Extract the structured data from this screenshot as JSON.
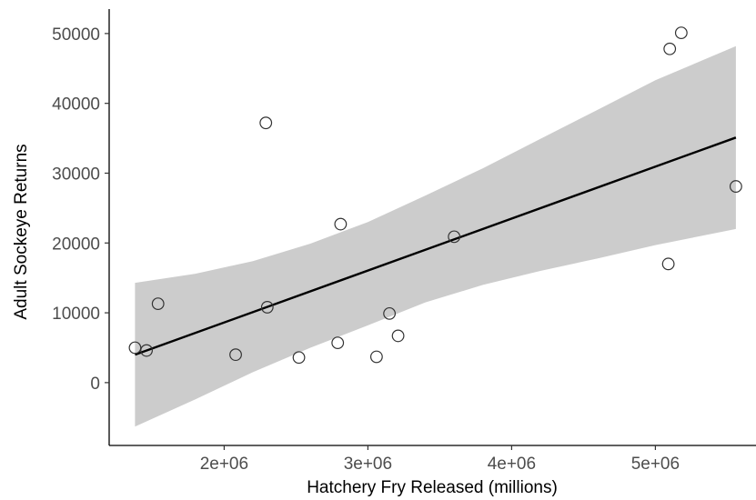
{
  "chart_data": {
    "type": "scatter",
    "title": "",
    "xlabel": "Hatchery Fry Released (millions)",
    "ylabel": "Adult Sockeye Returns",
    "xlim": [
      1200000,
      5700000
    ],
    "ylim": [
      -9000,
      53500
    ],
    "x_ticks": [
      2000000,
      3000000,
      4000000,
      5000000
    ],
    "x_tick_labels": [
      "2e+06",
      "3e+06",
      "4e+06",
      "5e+06"
    ],
    "y_ticks": [
      0,
      10000,
      20000,
      30000,
      40000,
      50000
    ],
    "y_tick_labels": [
      "0",
      "10000",
      "20000",
      "30000",
      "40000",
      "50000"
    ],
    "grid": false,
    "points": [
      {
        "x": 1380000,
        "y": 5000
      },
      {
        "x": 1460000,
        "y": 4600
      },
      {
        "x": 1540000,
        "y": 11300
      },
      {
        "x": 2080000,
        "y": 4000
      },
      {
        "x": 2290000,
        "y": 37200
      },
      {
        "x": 2300000,
        "y": 10800
      },
      {
        "x": 2520000,
        "y": 3600
      },
      {
        "x": 2790000,
        "y": 5700
      },
      {
        "x": 2810000,
        "y": 22700
      },
      {
        "x": 3060000,
        "y": 3700
      },
      {
        "x": 3150000,
        "y": 9900
      },
      {
        "x": 3210000,
        "y": 6700
      },
      {
        "x": 3600000,
        "y": 20900
      },
      {
        "x": 5090000,
        "y": 17000
      },
      {
        "x": 5100000,
        "y": 47800
      },
      {
        "x": 5180000,
        "y": 50100
      },
      {
        "x": 5560000,
        "y": 28100
      }
    ],
    "fit_line": {
      "x": [
        1380000,
        5560000
      ],
      "y": [
        4000,
        35100
      ]
    },
    "confidence_band": {
      "x": [
        1380000,
        1800000,
        2200000,
        2600000,
        3000000,
        3400000,
        3800000,
        4200000,
        4600000,
        5000000,
        5560000
      ],
      "upper": [
        14300,
        15600,
        17400,
        19900,
        23000,
        26800,
        30700,
        34900,
        39100,
        43300,
        48200
      ],
      "lower": [
        -6300,
        -2400,
        1500,
        5000,
        8200,
        11500,
        14000,
        16000,
        17800,
        19700,
        22000
      ]
    },
    "colors": {
      "band": "#cccccc",
      "line": "#000000",
      "point_stroke": "#333333",
      "axis": "#000000",
      "tick_text": "#4d4d4d"
    }
  }
}
